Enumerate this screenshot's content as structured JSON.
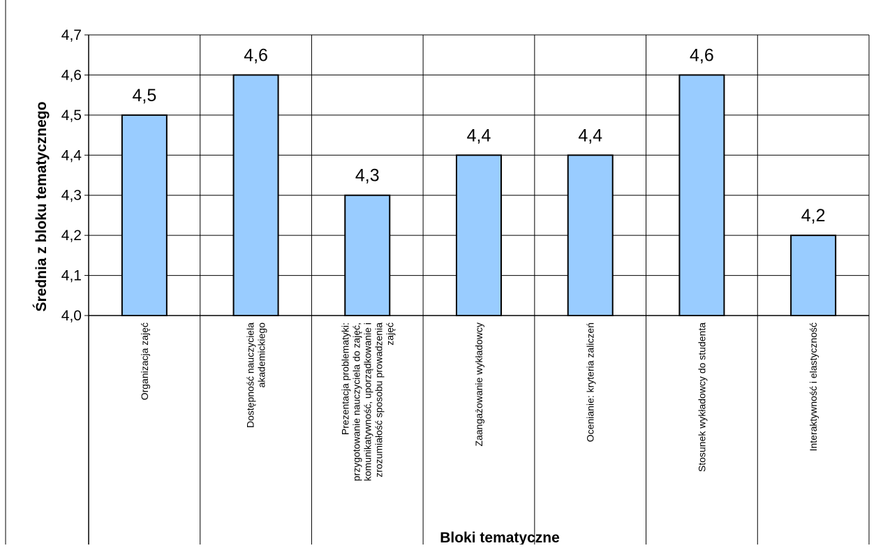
{
  "chart_data": {
    "type": "bar",
    "title": "",
    "xlabel": "Bloki tematyczne",
    "ylabel": "Średnia z bloku tematycznego",
    "ylim": [
      4.0,
      4.7
    ],
    "yticks": [
      "4,0",
      "4,1",
      "4,2",
      "4,3",
      "4,4",
      "4,5",
      "4,6",
      "4,7"
    ],
    "categories": [
      [
        "Organizacja zajęć"
      ],
      [
        "Dostępność nauczyciela",
        "akademickiego"
      ],
      [
        "Prezentacja problematyki:",
        "przygotowanie nauczyciela do zajęć,",
        "komunikatywność, uporządkowanie i",
        "zrozumiałość sposobu prowadzenia",
        "zajęć"
      ],
      [
        "Zaangażowanie wykładowcy"
      ],
      [
        "Ocenianie: kryteria zaliczeń"
      ],
      [
        "Stosunek wykładowcy do studenta"
      ],
      [
        "Interaktywność i elastyczność"
      ]
    ],
    "values": [
      4.5,
      4.6,
      4.3,
      4.4,
      4.4,
      4.6,
      4.2
    ],
    "data_labels": [
      "4,5",
      "4,6",
      "4,3",
      "4,4",
      "4,4",
      "4,6",
      "4,2"
    ],
    "grid": true,
    "legend": "none",
    "colors": {
      "bar_fill": "#99ccff",
      "bar_stroke": "#000000",
      "axis": "#000000",
      "grid": "#000000",
      "background": "#ffffff"
    }
  }
}
